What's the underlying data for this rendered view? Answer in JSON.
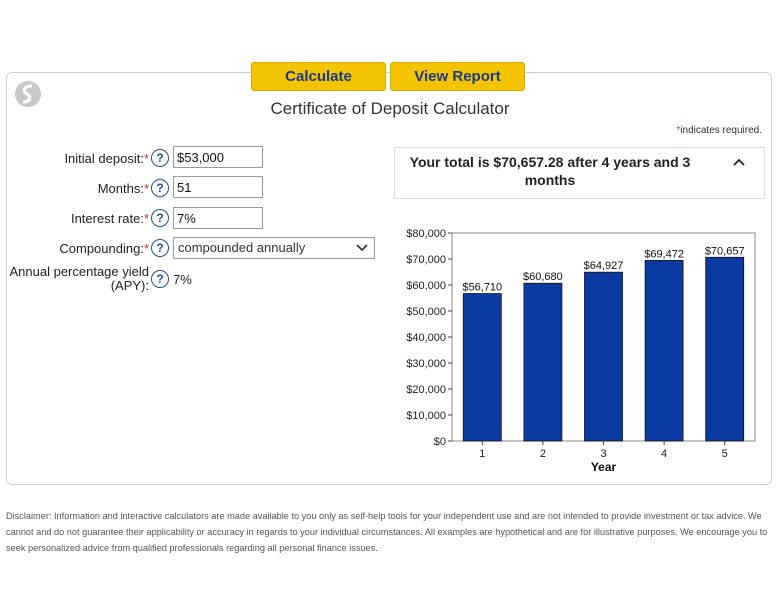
{
  "buttons": {
    "calculate": "Calculate",
    "view_report": "View Report"
  },
  "title": "Certificate of Deposit Calculator",
  "required_note": "indicates required.",
  "required_star": "*",
  "fields": {
    "initial_deposit": {
      "label": "Initial deposit:",
      "value": "$53,000"
    },
    "months": {
      "label": "Months:",
      "value": "51"
    },
    "interest_rate": {
      "label": "Interest rate:",
      "value": "7%"
    },
    "compounding": {
      "label": "Compounding:",
      "value": "compounded annually"
    },
    "apy": {
      "label_line1": "Annual percentage yield",
      "label_line2": "(APY):",
      "value": "7%"
    }
  },
  "help_glyph": "?",
  "total": {
    "text": "Your total is $70,657.28 after 4 years and 3 months",
    "toggle": "^"
  },
  "chart_data": {
    "type": "bar",
    "categories": [
      "1",
      "2",
      "3",
      "4",
      "5"
    ],
    "values": [
      56710,
      60680,
      64927,
      69472,
      70657
    ],
    "value_labels": [
      "$56,710",
      "$60,680",
      "$64,927",
      "$69,472",
      "$70,657"
    ],
    "xlabel": "Year",
    "ylabel": "",
    "ylim": [
      0,
      80000
    ],
    "yticks": [
      0,
      10000,
      20000,
      30000,
      40000,
      50000,
      60000,
      70000,
      80000
    ],
    "ytick_labels": [
      "$0",
      "$10,000",
      "$20,000",
      "$30,000",
      "$40,000",
      "$50,000",
      "$60,000",
      "$70,000",
      "$80,000"
    ],
    "bar_color": "#0b3aa3",
    "grid": false
  },
  "disclaimer": "Disclaimer: Information and interactive calculators are made available to you only as self-help tools for your independent use and are not intended to provide investment or tax advice. We cannot and do not guarantee their applicability or accuracy in regards to your individual circumstances. All examples are hypothetical and are for illustrative purposes. We encourage you to seek personalized advice from qualified professionals regarding all personal finance issues.",
  "colors": {
    "accent_button": "#f5c400",
    "button_text": "#1a3a8c",
    "help_icon": "#1f4e9c",
    "required_star": "#c0392b"
  }
}
